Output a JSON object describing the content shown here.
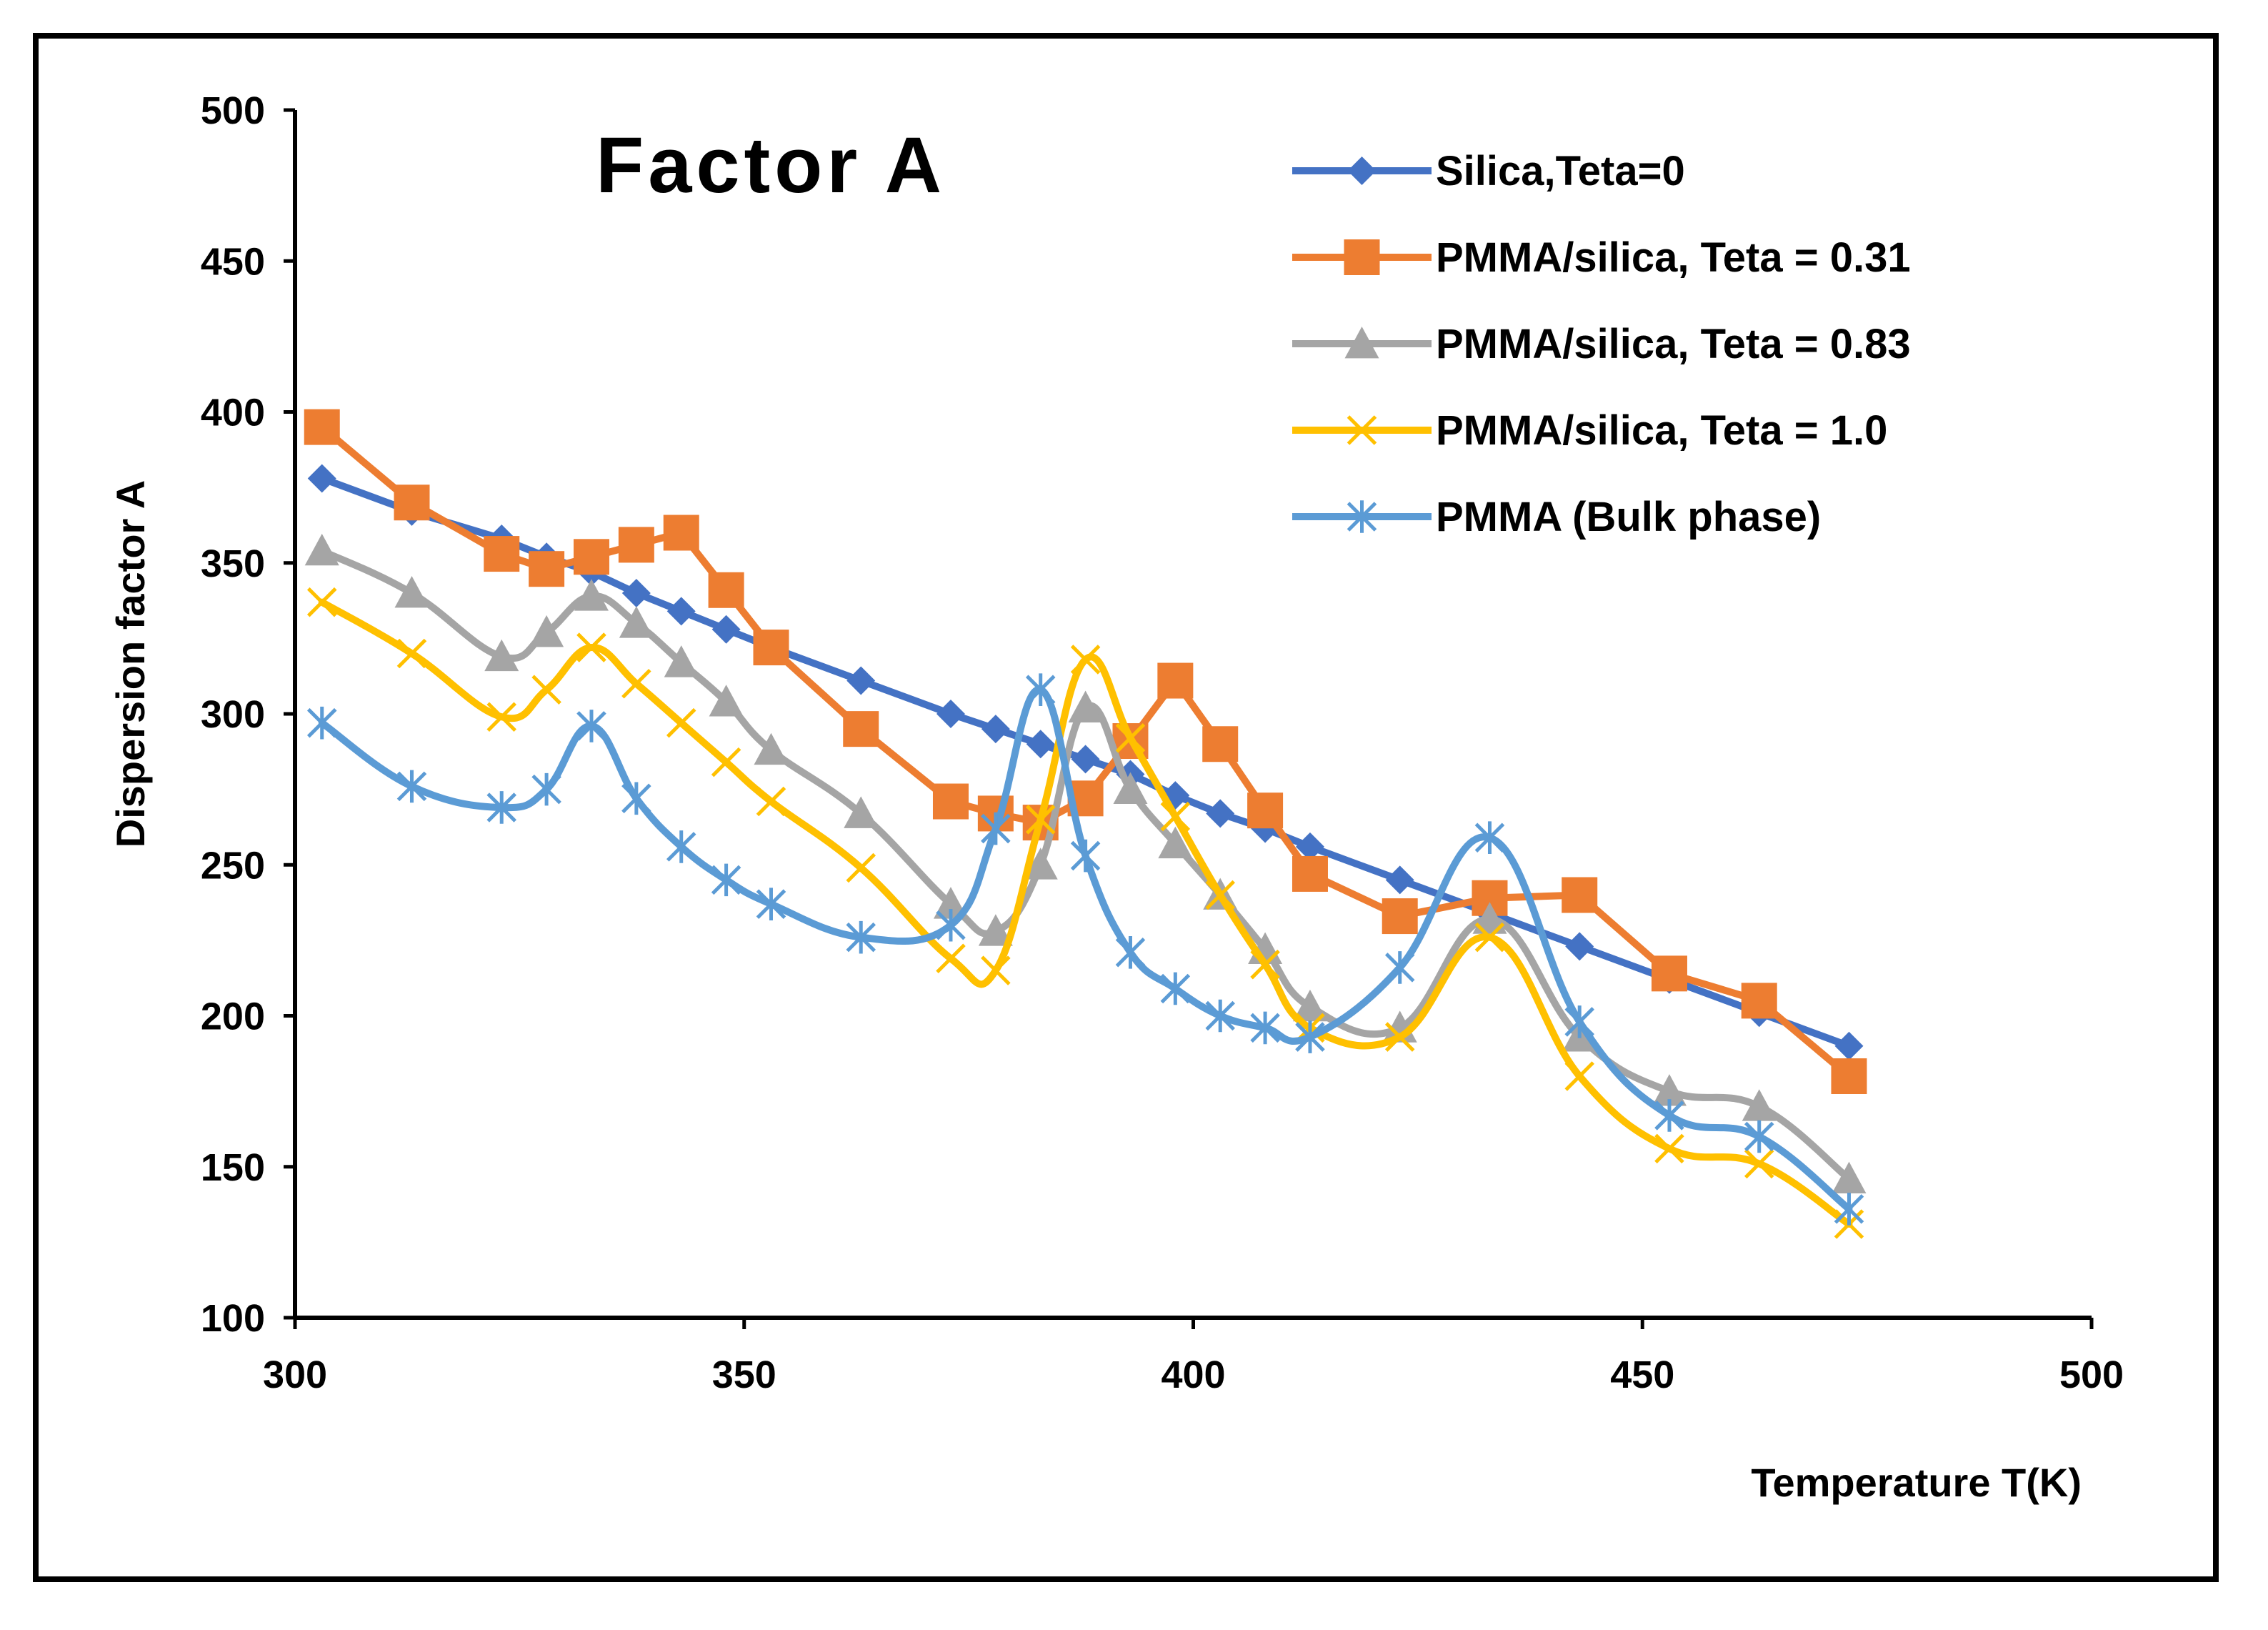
{
  "chart_data": {
    "type": "line",
    "title": "Factor  A",
    "xlabel": "Temperature T(K)",
    "ylabel": "Dispersion factor A",
    "xlim": [
      300,
      500
    ],
    "ylim": [
      100,
      500
    ],
    "xticks": [
      "300",
      "350",
      "400",
      "450",
      "500"
    ],
    "yticks": [
      "100",
      "150",
      "200",
      "250",
      "300",
      "350",
      "400",
      "450",
      "500"
    ],
    "legend_position": "top-right",
    "series": [
      {
        "name": "Silica,Teta=0",
        "color": "#4472C4",
        "marker": "diamond",
        "smooth": false,
        "x": [
          303,
          313,
          323,
          328,
          333,
          338,
          343,
          348,
          353,
          363,
          373,
          378,
          383,
          388,
          393,
          398,
          403,
          408,
          413,
          423,
          433,
          443,
          453,
          463,
          473
        ],
        "y": [
          378,
          367,
          358,
          352,
          347,
          340,
          334,
          328,
          322,
          311,
          300,
          295,
          290,
          285,
          280,
          273,
          267,
          262,
          256,
          245,
          234,
          223,
          212,
          201,
          190
        ]
      },
      {
        "name": "PMMA/silica, Teta = 0.31",
        "color": "#ED7D31",
        "marker": "square",
        "smooth": false,
        "x": [
          303,
          313,
          323,
          328,
          333,
          338,
          343,
          348,
          353,
          363,
          373,
          378,
          383,
          388,
          393,
          398,
          403,
          408,
          413,
          423,
          433,
          443,
          453,
          463,
          473
        ],
        "y": [
          395,
          370,
          353,
          348,
          352,
          356,
          360,
          341,
          322,
          295,
          271,
          267,
          264,
          272,
          291,
          311,
          290,
          268,
          247,
          233,
          239,
          240,
          214,
          205,
          180
        ]
      },
      {
        "name": "PMMA/silica, Teta = 0.83",
        "color": "#A5A5A5",
        "marker": "triangle",
        "smooth": true,
        "x": [
          303,
          313,
          323,
          328,
          333,
          338,
          343,
          348,
          353,
          363,
          373,
          378,
          383,
          388,
          393,
          398,
          403,
          408,
          413,
          423,
          433,
          443,
          453,
          463,
          473
        ],
        "y": [
          354,
          340,
          319,
          327,
          339,
          330,
          317,
          304,
          288,
          267,
          237,
          228,
          250,
          302,
          275,
          257,
          240,
          222,
          203,
          196,
          232,
          193,
          175,
          170,
          146
        ]
      },
      {
        "name": "PMMA/silica, Teta = 1.0",
        "color": "#FFC000",
        "marker": "x",
        "smooth": true,
        "x": [
          303,
          313,
          323,
          328,
          333,
          338,
          343,
          348,
          353,
          363,
          373,
          378,
          383,
          388,
          393,
          398,
          403,
          408,
          413,
          423,
          433,
          443,
          453,
          463,
          473
        ],
        "y": [
          337,
          320,
          299,
          308,
          322,
          310,
          297,
          284,
          271,
          249,
          219,
          215,
          265,
          318,
          292,
          266,
          240,
          217,
          196,
          193,
          226,
          180,
          156,
          151,
          131
        ]
      },
      {
        "name": "PMMA (Bulk phase)",
        "color": "#5B9BD5",
        "marker": "star",
        "smooth": true,
        "x": [
          303,
          313,
          323,
          328,
          333,
          338,
          343,
          348,
          353,
          363,
          373,
          378,
          383,
          388,
          393,
          398,
          403,
          408,
          413,
          423,
          433,
          443,
          453,
          463,
          473
        ],
        "y": [
          297,
          276,
          269,
          275,
          296,
          272,
          256,
          245,
          237,
          226,
          230,
          262,
          308,
          253,
          221,
          209,
          200,
          196,
          193,
          216,
          259,
          198,
          167,
          160,
          136
        ]
      }
    ]
  }
}
